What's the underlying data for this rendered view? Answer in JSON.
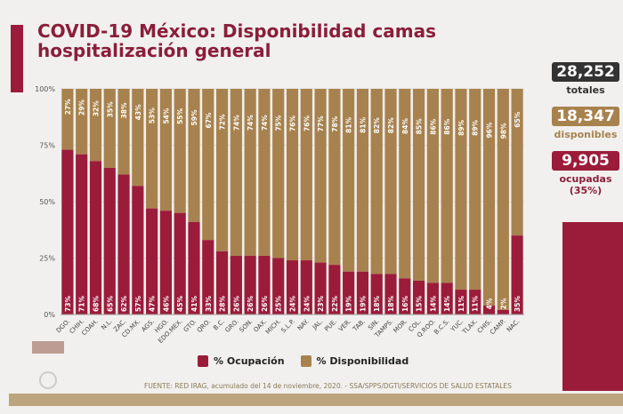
{
  "header": {
    "title": "COVID-19 México: Disponibilidad camas hospitalización general"
  },
  "stats": {
    "totales": {
      "value": "28,252",
      "label": "totales",
      "color": "#333333"
    },
    "disponibles": {
      "value": "18,347",
      "label": "disponibles",
      "color": "#a8824e"
    },
    "ocupadas": {
      "value": "9,905",
      "label": "ocupadas",
      "pct": "(35%)",
      "color": "#9b1c3a"
    }
  },
  "legend": {
    "ocupacion": "% Ocupación",
    "disponibilidad": "% Disponibilidad"
  },
  "source": "FUENTE: RED IRAG, acumulado del 14 de noviembre, 2020. -  SSA/SPPS/DGTI/SERVICIOS DE SALUD ESTATALES",
  "colors": {
    "ocupacion": "#9b1c3a",
    "disponibilidad": "#a8824e"
  },
  "chart_data": {
    "type": "bar",
    "stacked": true,
    "categories": [
      "DGO.",
      "CHIH.",
      "COAH.",
      "N.L.",
      "ZAC.",
      "CD.MX.",
      "AGS.",
      "HGO.",
      "EDO.MEX.",
      "GTO.",
      "QRO.",
      "B.C.",
      "GRO.",
      "SON.",
      "OAX.",
      "MICH.",
      "S.L.P.",
      "NAY.",
      "JAL.",
      "PUE.",
      "VER.",
      "TAB.",
      "SIN.",
      "TAMPS.",
      "MOR.",
      "COL.",
      "Q.ROO.",
      "B.C.S.",
      "YUC.",
      "TLAX.",
      "CHIS.",
      "CAMP.",
      "NAC."
    ],
    "series": [
      {
        "name": "% Ocupación",
        "values": [
          73,
          71,
          68,
          65,
          62,
          57,
          47,
          46,
          45,
          41,
          33,
          28,
          26,
          26,
          26,
          25,
          24,
          24,
          23,
          22,
          19,
          19,
          18,
          18,
          16,
          15,
          14,
          14,
          11,
          11,
          4,
          2,
          35
        ]
      },
      {
        "name": "% Disponibilidad",
        "values": [
          27,
          29,
          32,
          35,
          38,
          43,
          53,
          54,
          55,
          59,
          67,
          72,
          74,
          74,
          74,
          75,
          76,
          76,
          77,
          78,
          81,
          81,
          82,
          82,
          84,
          85,
          86,
          86,
          89,
          89,
          96,
          98,
          65
        ]
      }
    ],
    "yticks": [
      "0%",
      "25%",
      "50%",
      "75%",
      "100%"
    ],
    "ylim": [
      0,
      100
    ],
    "grid": true,
    "legend": "bottom"
  }
}
